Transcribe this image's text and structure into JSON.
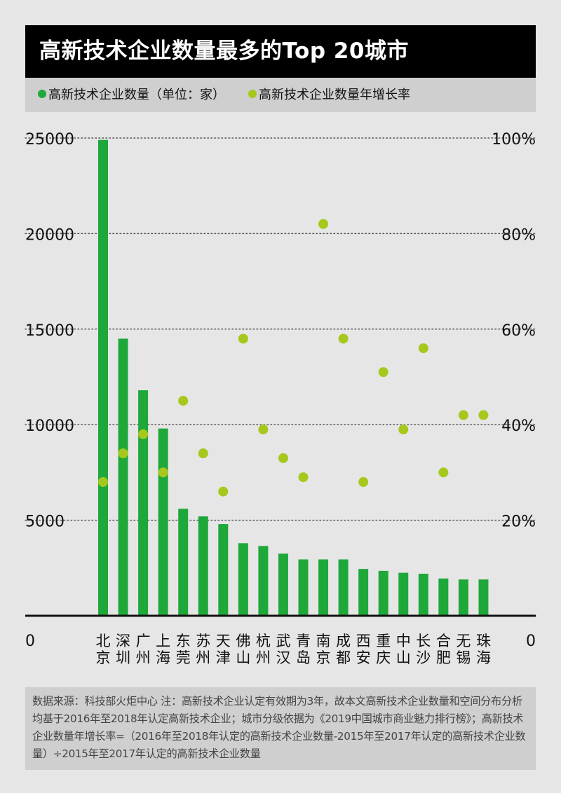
{
  "title": "高新技术企业数量最多的Top 20城市",
  "legend": {
    "bar_label": "高新技术企业数量（单位：家）",
    "dot_label": "高新技术企业数量年增长率"
  },
  "colors": {
    "bar": "#1fa83a",
    "dot": "#a6c81c",
    "background": "#e6e6e6",
    "title_bg": "#000000",
    "legend_bg": "#cfcfcf"
  },
  "footnote": "数据来源：科技部火炬中心 注：高新技术企业认定有效期为3年，故本文高新技术企业数量和空间分布分析均基于2016年至2018年认定高新技术企业；城市分级依据为《2019中国城市商业魅力排行榜》；高新技术企业数量年增长率=（2016年至2018年认定的高新技术企业数量-2015年至2017年认定的高新技术企业数量）÷2015年至2017年认定的高新技术企业数量",
  "chart_data": {
    "type": "bar",
    "categories": [
      "北京",
      "深圳",
      "广州",
      "上海",
      "东莞",
      "苏州",
      "天津",
      "佛山",
      "杭州",
      "武汉",
      "青岛",
      "南京",
      "成都",
      "西安",
      "重庆",
      "中山",
      "长沙",
      "合肥",
      "无锡",
      "珠海"
    ],
    "category_lines": [
      [
        "北",
        "京"
      ],
      [
        "深",
        "圳"
      ],
      [
        "广",
        "州"
      ],
      [
        "上",
        "海"
      ],
      [
        "东",
        "莞"
      ],
      [
        "苏",
        "州"
      ],
      [
        "天",
        "津"
      ],
      [
        "佛",
        "山"
      ],
      [
        "杭",
        "州"
      ],
      [
        "武",
        "汉"
      ],
      [
        "青",
        "岛"
      ],
      [
        "南",
        "京"
      ],
      [
        "成",
        "都"
      ],
      [
        "西",
        "安"
      ],
      [
        "重",
        "庆"
      ],
      [
        "中",
        "山"
      ],
      [
        "长",
        "沙"
      ],
      [
        "合",
        "肥"
      ],
      [
        "无",
        "锡"
      ],
      [
        "珠",
        "海"
      ]
    ],
    "series": [
      {
        "values": [
          24900,
          14500,
          11800,
          9800,
          5600,
          5200,
          4800,
          3800,
          3650,
          3250,
          2950,
          2950,
          2950,
          2450,
          2350,
          2250,
          2200,
          1950,
          1900,
          1900
        ]
      },
      {
        "values": [
          28,
          34,
          38,
          30,
          45,
          34,
          26,
          58,
          39,
          33,
          29,
          82,
          58,
          28,
          51,
          39,
          56,
          30,
          42,
          42
        ]
      }
    ],
    "y_left": {
      "min": 0,
      "max": 25000,
      "ticks": [
        "0",
        "5000",
        "10000",
        "15000",
        "20000",
        "25000"
      ]
    },
    "y_right": {
      "min": 0,
      "max": 100,
      "ticks": [
        "20%",
        "40%",
        "60%",
        "80%",
        "100%"
      ]
    },
    "grid": true,
    "legend_position": "top"
  }
}
